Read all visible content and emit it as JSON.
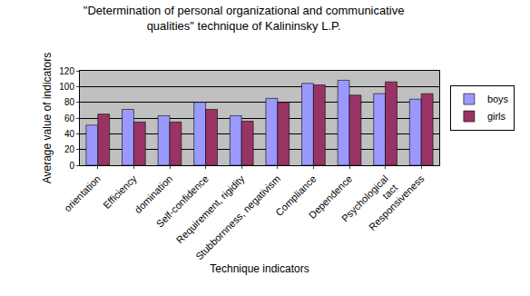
{
  "chart_data": {
    "type": "bar",
    "title": "\"Determination of personal organizational and communicative\nqualities\" technique of Kalininsky L.P.",
    "x_label": "Technique indicators",
    "y_label": "Average value of indicators",
    "categories": [
      "orientation",
      "Efficiency",
      "domination",
      "Self-confidence",
      "Requirement, rigidity",
      "Stubbornness, negativism",
      "Compliance",
      "Dependence",
      "Psychological\ntact",
      "Responsiveness"
    ],
    "series": [
      {
        "name": "boys",
        "color": "#9999ff",
        "values": [
          51,
          71,
          63,
          80,
          63,
          85,
          104,
          108,
          91,
          84
        ]
      },
      {
        "name": "girls",
        "color": "#993366",
        "values": [
          65,
          55,
          55,
          71,
          56,
          80,
          102,
          89,
          106,
          91
        ]
      }
    ],
    "ylim": [
      0,
      120
    ],
    "yticks": [
      0,
      20,
      40,
      60,
      80,
      100,
      120
    ],
    "grid": true,
    "legend": "right"
  }
}
